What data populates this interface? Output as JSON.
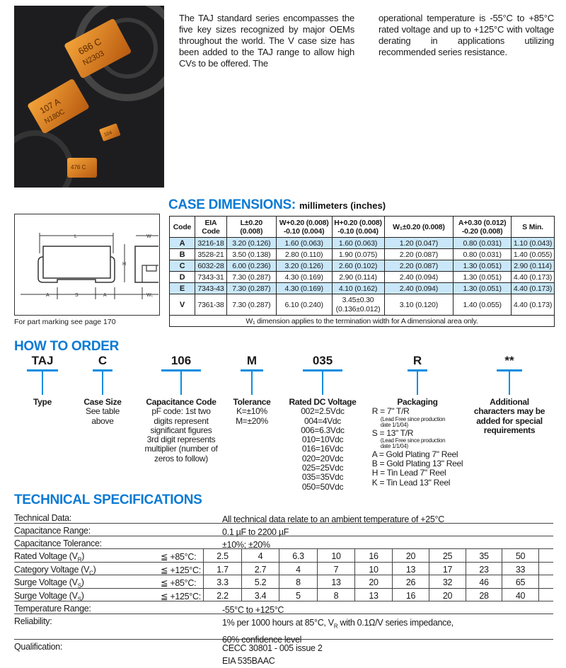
{
  "intro": {
    "col1": "The TAJ standard series encompasses the five key sizes recognized by major OEMs throughout the world. The V case size has been added to the TAJ range to allow high CVs to be offered. The",
    "col2": "operational temperature is -55°C to +85°C rated voltage and up to +125°C with voltage derating in applications utilizing recommended series resistance."
  },
  "photo": {
    "markings": [
      "686 C",
      "N2303",
      "107 A",
      "N180C",
      "104",
      "476 C"
    ]
  },
  "case_dimensions": {
    "title": "CASE DIMENSIONS:",
    "unit": "millimeters (inches)",
    "headers": [
      [
        "Code"
      ],
      [
        "EIA",
        "Code"
      ],
      [
        "L±0.20 (0.008)"
      ],
      [
        "W+0.20 (0.008)",
        "-0.10 (0.004)"
      ],
      [
        "H+0.20 (0.008)",
        "-0.10 (0.004)"
      ],
      [
        "W₁±0.20 (0.008)"
      ],
      [
        "A+0.30 (0.012)",
        "-0.20 (0.008)"
      ],
      [
        "S Min."
      ]
    ],
    "rows": [
      [
        "A",
        "3216-18",
        "3.20 (0.126)",
        "1.60 (0.063)",
        "1.60 (0.063)",
        "1.20 (0.047)",
        "0.80 (0.031)",
        "1.10 (0.043)"
      ],
      [
        "B",
        "3528-21",
        "3.50 (0.138)",
        "2.80 (0.110)",
        "1.90 (0.075)",
        "2.20 (0.087)",
        "0.80 (0.031)",
        "1.40 (0.055)"
      ],
      [
        "C",
        "6032-28",
        "6.00 (0.236)",
        "3.20 (0.126)",
        "2.60 (0.102)",
        "2.20 (0.087)",
        "1.30 (0.051)",
        "2.90 (0.114)"
      ],
      [
        "D",
        "7343-31",
        "7.30 (0.287)",
        "4.30 (0.169)",
        "2.90 (0.114)",
        "2.40 (0.094)",
        "1.30 (0.051)",
        "4.40 (0.173)"
      ],
      [
        "E",
        "7343-43",
        "7.30 (0.287)",
        "4.30 (0.169)",
        "4.10 (0.162)",
        "2.40 (0.094)",
        "1.30 (0.051)",
        "4.40 (0.173)"
      ],
      [
        "V",
        "7361-38",
        "7.30 (0.287)",
        "6.10 (0.240)",
        "3.45±0.30 (0.136±0.012)",
        "3.10 (0.120)",
        "1.40 (0.055)",
        "4.40 (0.173)"
      ]
    ],
    "highlight_color": "#c9e7f8",
    "footnote": "W₁ dimension applies to the termination width for A dimensional area only."
  },
  "diagram": {
    "labels": {
      "L": "L",
      "W": "W",
      "H": "H",
      "A": "A",
      "S": "S",
      "W1": "W₁"
    }
  },
  "part_marking": "For part marking see page 170",
  "how_to_order": {
    "title": "HOW TO ORDER",
    "items": [
      {
        "code": "TAJ",
        "label": "Type",
        "lines": []
      },
      {
        "code": "C",
        "label": "Case Size",
        "lines": [
          "See table",
          "above"
        ]
      },
      {
        "code": "106",
        "label": "Capacitance Code",
        "lines": [
          "pF code: 1st two",
          "digits represent",
          "significant figures",
          "3rd digit represents",
          "multiplier (number of",
          "zeros to follow)"
        ]
      },
      {
        "code": "M",
        "label": "Tolerance",
        "lines": [
          "K=±10%",
          "M=±20%"
        ]
      },
      {
        "code": "035",
        "label": "Rated DC Voltage",
        "lines": [
          "002=2.5Vdc",
          "004=4Vdc",
          "006=6.3Vdc",
          "010=10Vdc",
          "016=16Vdc",
          "020=20Vdc",
          "025=25Vdc",
          "035=35Vdc",
          "050=50Vdc"
        ]
      },
      {
        "code": "R",
        "label": "Packaging",
        "lines": [
          "R = 7\" T/R",
          "(Lead Free since production",
          "date 1/1/04)",
          "S = 13\" T/R",
          "(Lead Free since production",
          "date 1/1/04)",
          "A = Gold Plating 7\" Reel",
          "B = Gold Plating 13\" Reel",
          "H = Tin Lead 7\" Reel",
          "K = Tin Lead 13\" Reel"
        ]
      },
      {
        "code": "**",
        "label": "Additional",
        "lines": [
          "characters may be",
          "added for special",
          "requirements"
        ]
      }
    ]
  },
  "technical_specifications": {
    "title": "TECHNICAL SPECIFICATIONS",
    "technical_data": {
      "label": "Technical Data:",
      "value": "All technical data relate to an ambient temperature of +25°C"
    },
    "capacitance_range": {
      "label": "Capacitance Range:",
      "value": "0.1 µF to 2200 µF"
    },
    "capacitance_tolerance": {
      "label": "Capacitance Tolerance:",
      "value": "±10%; ±20%"
    },
    "voltage_rows": [
      {
        "label": "Rated Voltage (V",
        "sub": "R",
        "cond": "≦ +85°C:",
        "values": [
          "2.5",
          "4",
          "6.3",
          "10",
          "16",
          "20",
          "25",
          "35",
          "50"
        ]
      },
      {
        "label": "Category Voltage (V",
        "sub": "C",
        "cond": "≦ +125°C:",
        "values": [
          "1.7",
          "2.7",
          "4",
          "7",
          "10",
          "13",
          "17",
          "23",
          "33"
        ]
      },
      {
        "label": "Surge Voltage (V",
        "sub": "S",
        "cond": "≦ +85°C:",
        "values": [
          "3.3",
          "5.2",
          "8",
          "13",
          "20",
          "26",
          "32",
          "46",
          "65"
        ]
      },
      {
        "label": "Surge Voltage (V",
        "sub": "S",
        "cond": "≦ +125°C:",
        "values": [
          "2.2",
          "3.4",
          "5",
          "8",
          "13",
          "16",
          "20",
          "28",
          "40"
        ]
      }
    ],
    "temperature_range": {
      "label": "Temperature Range:",
      "value": "-55°C to +125°C"
    },
    "reliability": {
      "label": "Reliability:",
      "value_pre": "1% per 1000 hours at 85°C, V",
      "value_sub": "R",
      "value_post": " with 0.1Ω/V series impedance,",
      "value_line2": "60% confidence level"
    },
    "qualification": {
      "label": "Qualification:",
      "value_line1": "CECC 30801 - 005 issue 2",
      "value_line2": "EIA 535BAAC"
    }
  },
  "colors": {
    "accent": "#0a7ad4",
    "order_lines": "#0a8ee0"
  }
}
